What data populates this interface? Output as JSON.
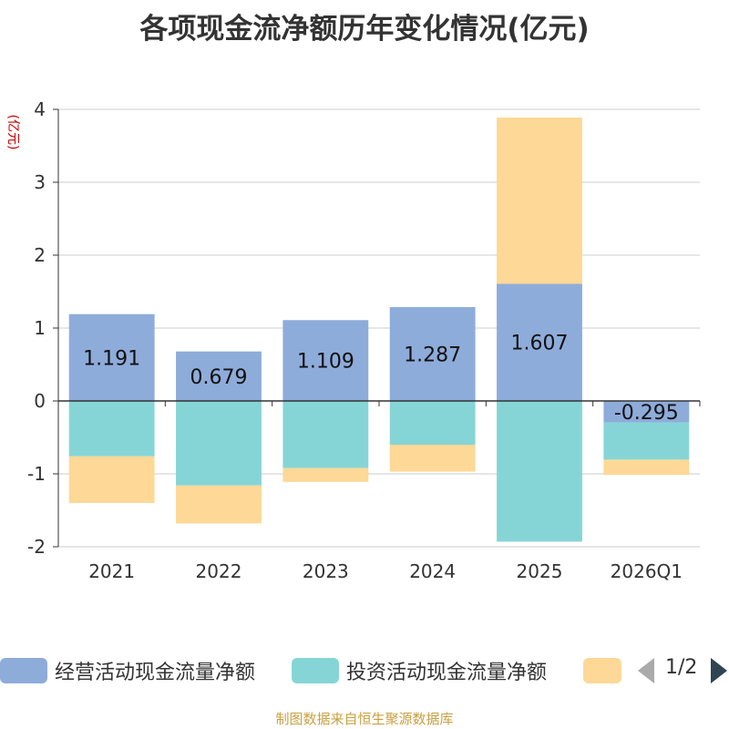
{
  "chart_data": {
    "type": "bar",
    "title": "各项现金流净额历年变化情况(亿元)",
    "ylabel": "(亿元)",
    "categories": [
      "2021",
      "2022",
      "2023",
      "2024",
      "2025",
      "2026Q1"
    ],
    "ylim": [
      -2,
      4
    ],
    "yticks": [
      4,
      3,
      2,
      1,
      0,
      -1,
      -2
    ],
    "stacked": true,
    "grid": true,
    "series": [
      {
        "name": "经营活动现金流量净额",
        "color": "#8eacda",
        "values": [
          1.191,
          0.679,
          1.109,
          1.287,
          1.607,
          -0.295
        ],
        "labels": [
          "1.191",
          "0.679",
          "1.109",
          "1.287",
          "1.607",
          "-0.295"
        ]
      },
      {
        "name": "投资活动现金流量净额",
        "color": "#86d5d6",
        "values": [
          -0.76,
          -1.16,
          -0.92,
          -0.6,
          -1.93,
          -0.51
        ]
      },
      {
        "name": "",
        "color": "#fdd896",
        "values": [
          -0.64,
          -0.52,
          -0.19,
          -0.37,
          2.28,
          -0.21
        ]
      }
    ]
  },
  "legend": {
    "page": "1/2"
  },
  "source": "制图数据来自恒生聚源数据库"
}
